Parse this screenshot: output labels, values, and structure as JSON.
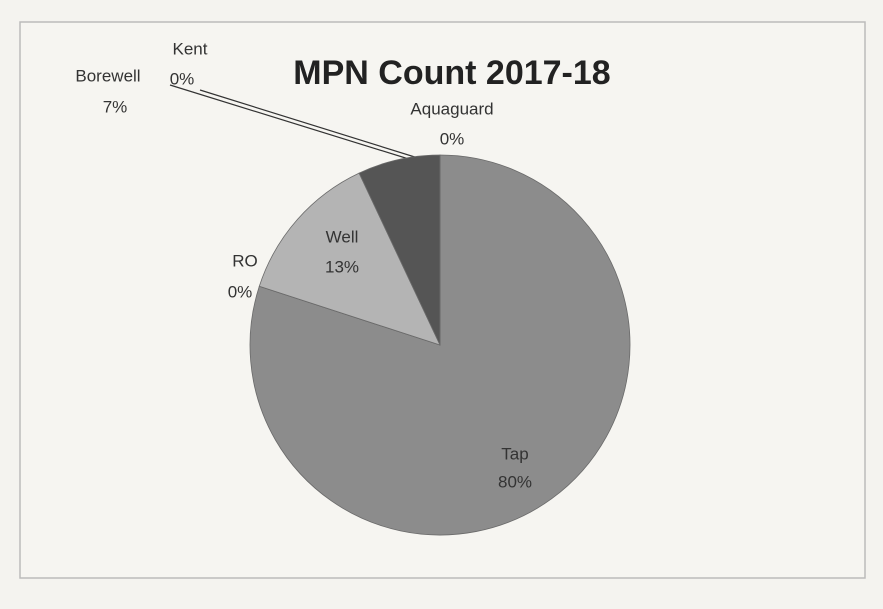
{
  "chart_data": {
    "type": "pie",
    "title": "MPN Count 2017-18",
    "categories": [
      "Tap",
      "RO",
      "Well",
      "Borewell",
      "Kent",
      "Aquaguard"
    ],
    "values": [
      80,
      0,
      13,
      7,
      0,
      0
    ],
    "value_labels": [
      "80%",
      "0%",
      "13%",
      "7%",
      "0%",
      "0%"
    ],
    "colors": [
      "#8c8c8c",
      "#9a9a9a",
      "#b4b4b4",
      "#555555",
      "#666666",
      "#777777"
    ]
  }
}
